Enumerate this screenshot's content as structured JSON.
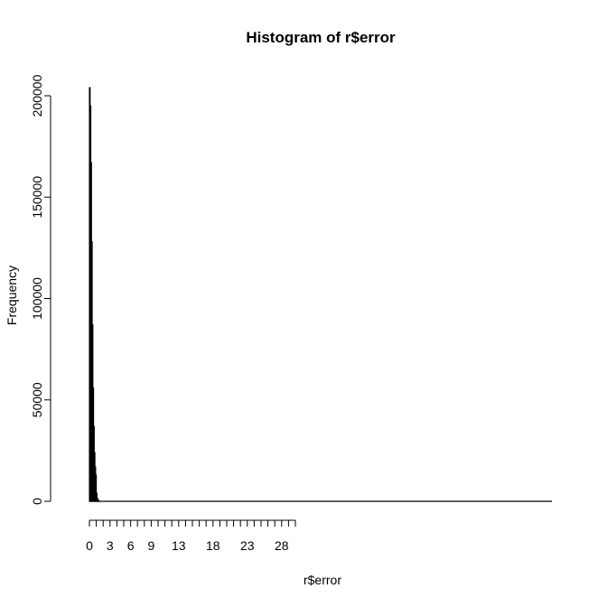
{
  "chart_data": {
    "type": "bar",
    "title": "Histogram of r$error",
    "xlabel": "r$error",
    "ylabel": "Frequency",
    "xlim": [
      0,
      30
    ],
    "ylim": [
      0,
      205000
    ],
    "bin_width": 0.1,
    "bins": [
      {
        "x0": 0.0,
        "x1": 0.1,
        "count": 204000
      },
      {
        "x0": 0.1,
        "x1": 0.2,
        "count": 195000
      },
      {
        "x0": 0.2,
        "x1": 0.3,
        "count": 167000
      },
      {
        "x0": 0.3,
        "x1": 0.4,
        "count": 128000
      },
      {
        "x0": 0.4,
        "x1": 0.5,
        "count": 87000
      },
      {
        "x0": 0.5,
        "x1": 0.6,
        "count": 56000
      },
      {
        "x0": 0.6,
        "x1": 0.7,
        "count": 37000
      },
      {
        "x0": 0.7,
        "x1": 0.8,
        "count": 24000
      },
      {
        "x0": 0.8,
        "x1": 0.9,
        "count": 17000
      },
      {
        "x0": 0.9,
        "x1": 1.0,
        "count": 13000
      },
      {
        "x0": 1.0,
        "x1": 1.1,
        "count": 4000
      },
      {
        "x0": 1.1,
        "x1": 1.2,
        "count": 1500
      },
      {
        "x0": 1.2,
        "x1": 1.3,
        "count": 700
      },
      {
        "x0": 1.3,
        "x1": 1.4,
        "count": 300
      }
    ],
    "x_range_with_zero_bins": [
      0,
      67
    ],
    "y_ticks": [
      0,
      50000,
      100000,
      150000,
      200000
    ],
    "y_tick_labels": [
      "0",
      "50000",
      "100000",
      "150000",
      "200000"
    ],
    "x_minor_ticks": [
      0,
      1,
      2,
      3,
      4,
      5,
      6,
      7,
      8,
      9,
      10,
      11,
      12,
      13,
      14,
      15,
      16,
      17,
      18,
      19,
      20,
      21,
      22,
      23,
      24,
      25,
      26,
      27,
      28,
      29,
      30
    ],
    "x_tick_labels": [
      {
        "value": 0,
        "label": "0"
      },
      {
        "value": 3,
        "label": "3"
      },
      {
        "value": 6,
        "label": "6"
      },
      {
        "value": 9,
        "label": "9"
      },
      {
        "value": 13,
        "label": "13"
      },
      {
        "value": 18,
        "label": "18"
      },
      {
        "value": 23,
        "label": "23"
      },
      {
        "value": 28,
        "label": "28"
      }
    ],
    "grid": false,
    "legend": "none"
  }
}
